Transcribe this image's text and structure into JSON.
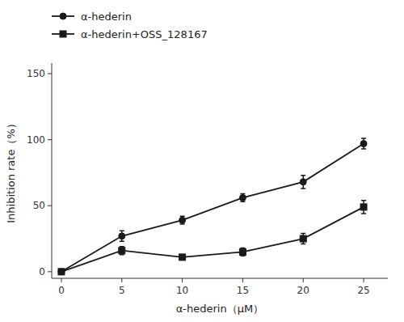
{
  "chart_data": {
    "type": "line",
    "x": [
      0,
      5,
      10,
      15,
      20,
      25
    ],
    "series": [
      {
        "name": "α-hederin",
        "color": "#1a1a1a",
        "marker": "circle",
        "line_style": "solid",
        "values": [
          0,
          27,
          39,
          56,
          68,
          97
        ],
        "errors": [
          0,
          4,
          3,
          3,
          5,
          4
        ]
      },
      {
        "name": "α-hederin+OSS_128167",
        "color": "#1a1a1a",
        "marker": "square",
        "line_style": "solid",
        "values": [
          0,
          16,
          11,
          15,
          25,
          49
        ],
        "errors": [
          0,
          3,
          2,
          3,
          4,
          5
        ]
      }
    ],
    "xlabel": "α-hederin（μM）",
    "ylabel": "Inhibition rate（%）",
    "xlim": [
      -0.8,
      27
    ],
    "ylim": [
      -5,
      158
    ],
    "xticks": [
      0,
      5,
      10,
      15,
      20,
      25
    ],
    "yticks": [
      0,
      50,
      100,
      150
    ],
    "grid": false,
    "legend": "upper left"
  }
}
